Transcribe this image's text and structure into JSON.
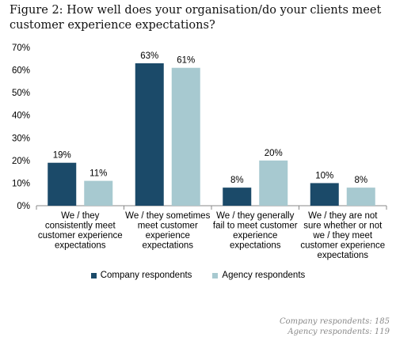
{
  "title": "Figure 2: How well does your organisation/do your clients meet customer experience expectations?",
  "chart_data": {
    "type": "bar",
    "categories": [
      "We / they consistently meet customer experience expectations",
      "We / they sometimes meet customer experience expectations",
      "We / they generally fail to meet customer experience expectations",
      "We / they are not sure whether or not we / they meet customer experience expectations"
    ],
    "category_lines": [
      [
        "We / they",
        "consistently meet",
        "customer experience",
        "expectations"
      ],
      [
        "We / they sometimes",
        "meet customer",
        "experience",
        "expectations"
      ],
      [
        "We / they generally",
        "fail to meet customer",
        "experience",
        "expectations"
      ],
      [
        "We / they are not",
        "sure whether or not",
        "we / they meet",
        "customer experience",
        "expectations"
      ]
    ],
    "series": [
      {
        "name": "Company respondents",
        "values": [
          19,
          63,
          8,
          10
        ],
        "labels": [
          "19%",
          "63%",
          "8%",
          "10%"
        ],
        "color": "#1b4a69"
      },
      {
        "name": "Agency respondents",
        "values": [
          11,
          61,
          20,
          8
        ],
        "labels": [
          "11%",
          "61%",
          "20%",
          "8%"
        ],
        "color": "#a7c9d0"
      }
    ],
    "ylim": [
      0,
      70
    ],
    "yticks": [
      0,
      10,
      20,
      30,
      40,
      50,
      60,
      70
    ],
    "ytick_labels": [
      "0%",
      "10%",
      "20%",
      "30%",
      "40%",
      "50%",
      "60%",
      "70%"
    ],
    "legend": "bottom",
    "grid": false
  },
  "footnotes": [
    "Company respondents: 185",
    "Agency respondents: 119"
  ]
}
